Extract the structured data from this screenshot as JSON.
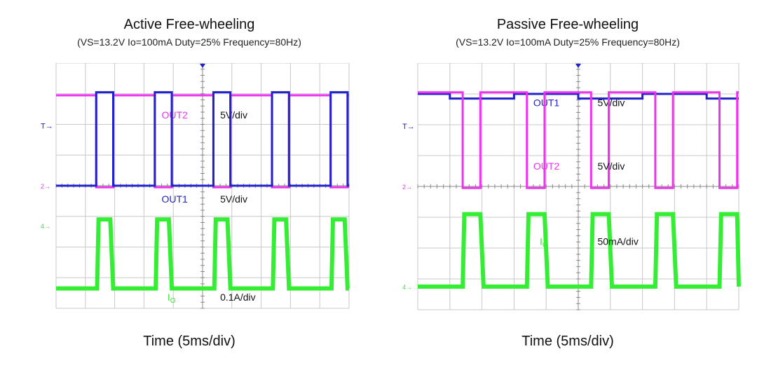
{
  "colors": {
    "magenta": "#ee33ee",
    "blue": "#2222cc",
    "green": "#33ee33",
    "grid": "#c8c8c8",
    "axis": "#888888",
    "text": "#111111"
  },
  "chart_data": [
    {
      "type": "line",
      "title": "Active Free-wheeling",
      "subtitle": "(VS=13.2V Io=100mA Duty=25% Frequency=80Hz)",
      "xlabel": "Time (5ms/div)",
      "xlim_div": [
        0,
        10
      ],
      "ylim_div": [
        -4,
        4
      ],
      "grid": true,
      "markers": {
        "trigger": "T",
        "ch2": "2",
        "ch4": "4"
      },
      "series": [
        {
          "name": "OUT2",
          "color": "#ee33ee",
          "scale": "5V/div",
          "x": [
            0,
            1.37,
            1.37,
            1.95,
            1.95,
            3.37,
            3.37,
            3.95,
            3.95,
            5.37,
            5.37,
            5.95,
            5.95,
            7.37,
            7.37,
            7.95,
            7.95,
            9.37,
            9.37,
            9.95,
            9.95,
            10
          ],
          "y": [
            2.95,
            2.95,
            -0.05,
            -0.05,
            2.95,
            2.95,
            -0.05,
            -0.05,
            2.95,
            2.95,
            -0.05,
            -0.05,
            2.95,
            2.95,
            -0.05,
            -0.05,
            2.95,
            2.95,
            -0.05,
            -0.05,
            2.95,
            2.95
          ],
          "label_pos_div": [
            3.6,
            2.2
          ],
          "scale_pos_div": [
            5.6,
            2.2
          ]
        },
        {
          "name": "OUT1",
          "color": "#2222cc",
          "scale": "5V/div",
          "x": [
            0,
            1.37,
            1.37,
            1.95,
            1.95,
            3.37,
            3.37,
            3.95,
            3.95,
            5.37,
            5.37,
            5.95,
            5.95,
            7.37,
            7.37,
            7.95,
            7.95,
            9.37,
            9.37,
            9.95,
            9.95,
            10
          ],
          "y": [
            0,
            0,
            3.05,
            3.05,
            0,
            0,
            3.05,
            3.05,
            0,
            0,
            3.05,
            3.05,
            0,
            0,
            3.05,
            3.05,
            0,
            0,
            3.05,
            3.05,
            0,
            0
          ],
          "label_pos_div": [
            3.6,
            -0.55
          ],
          "scale_pos_div": [
            5.6,
            -0.55
          ]
        },
        {
          "name": "Io",
          "color": "#33ee33",
          "scale": "0.1A/div",
          "x": [
            0,
            1.4,
            1.45,
            1.85,
            1.95,
            3.4,
            3.45,
            3.85,
            3.95,
            5.4,
            5.45,
            5.85,
            5.95,
            7.4,
            7.45,
            7.85,
            7.95,
            9.4,
            9.45,
            9.85,
            9.95,
            10
          ],
          "y": [
            -3.35,
            -3.35,
            -1.1,
            -1.1,
            -3.35,
            -3.35,
            -1.1,
            -1.1,
            -3.35,
            -3.35,
            -1.1,
            -1.1,
            -3.35,
            -3.35,
            -1.1,
            -1.1,
            -3.35,
            -3.35,
            -1.1,
            -1.1,
            -3.35,
            -3.35
          ],
          "label_pos_div": [
            3.8,
            -3.75
          ],
          "scale_pos_div": [
            5.6,
            -3.75
          ]
        }
      ]
    },
    {
      "type": "line",
      "title": "Passive Free-wheeling",
      "subtitle": "(VS=13.2V Io=100mA Duty=25% Frequency=80Hz)",
      "xlabel": "Time (5ms/div)",
      "xlim_div": [
        0,
        10
      ],
      "ylim_div": [
        -4,
        4
      ],
      "grid": true,
      "markers": {
        "trigger": "T",
        "ch2": "2",
        "ch4": "4"
      },
      "series": [
        {
          "name": "OUT1",
          "color": "#2222cc",
          "scale": "5V/div",
          "x": [
            0,
            1.0,
            1.0,
            3.0,
            3.0,
            5.0,
            5.0,
            7.0,
            7.0,
            9.0,
            9.0,
            10
          ],
          "y": [
            3.0,
            3.0,
            2.85,
            2.85,
            3.0,
            3.0,
            2.85,
            2.85,
            3.0,
            3.0,
            2.85,
            2.85
          ],
          "label_pos_div": [
            3.6,
            2.6
          ],
          "scale_pos_div": [
            5.6,
            2.6
          ]
        },
        {
          "name": "OUT2",
          "color": "#ee33ee",
          "scale": "5V/div",
          "x": [
            0,
            1.4,
            1.4,
            1.95,
            1.95,
            3.4,
            3.4,
            3.95,
            3.95,
            5.4,
            5.4,
            5.95,
            5.95,
            7.4,
            7.4,
            7.95,
            7.95,
            9.4,
            9.4,
            9.95,
            9.95,
            10
          ],
          "y": [
            3.05,
            3.05,
            -0.05,
            -0.05,
            3.05,
            3.05,
            -0.05,
            -0.05,
            3.05,
            3.05,
            -0.05,
            -0.05,
            3.05,
            3.05,
            -0.05,
            -0.05,
            3.05,
            3.05,
            -0.05,
            -0.05,
            3.05,
            3.05
          ],
          "label_pos_div": [
            3.6,
            0.55
          ],
          "scale_pos_div": [
            5.6,
            0.55
          ]
        },
        {
          "name": "Io",
          "color": "#33ee33",
          "scale": "50mA/div",
          "x": [
            0,
            1.4,
            1.45,
            1.95,
            2.05,
            3.4,
            3.45,
            3.95,
            4.05,
            5.4,
            5.45,
            5.95,
            6.05,
            7.4,
            7.45,
            7.95,
            8.05,
            9.4,
            9.45,
            9.95,
            10.05,
            10
          ],
          "y": [
            -3.25,
            -3.25,
            -0.9,
            -0.9,
            -3.25,
            -3.25,
            -0.9,
            -0.9,
            -3.25,
            -3.25,
            -0.9,
            -0.9,
            -3.25,
            -3.25,
            -0.9,
            -0.9,
            -3.25,
            -3.25,
            -0.9,
            -0.9,
            -3.25,
            -3.25
          ],
          "label_pos_div": [
            3.8,
            -1.9
          ],
          "scale_pos_div": [
            5.6,
            -1.9
          ]
        }
      ]
    }
  ]
}
